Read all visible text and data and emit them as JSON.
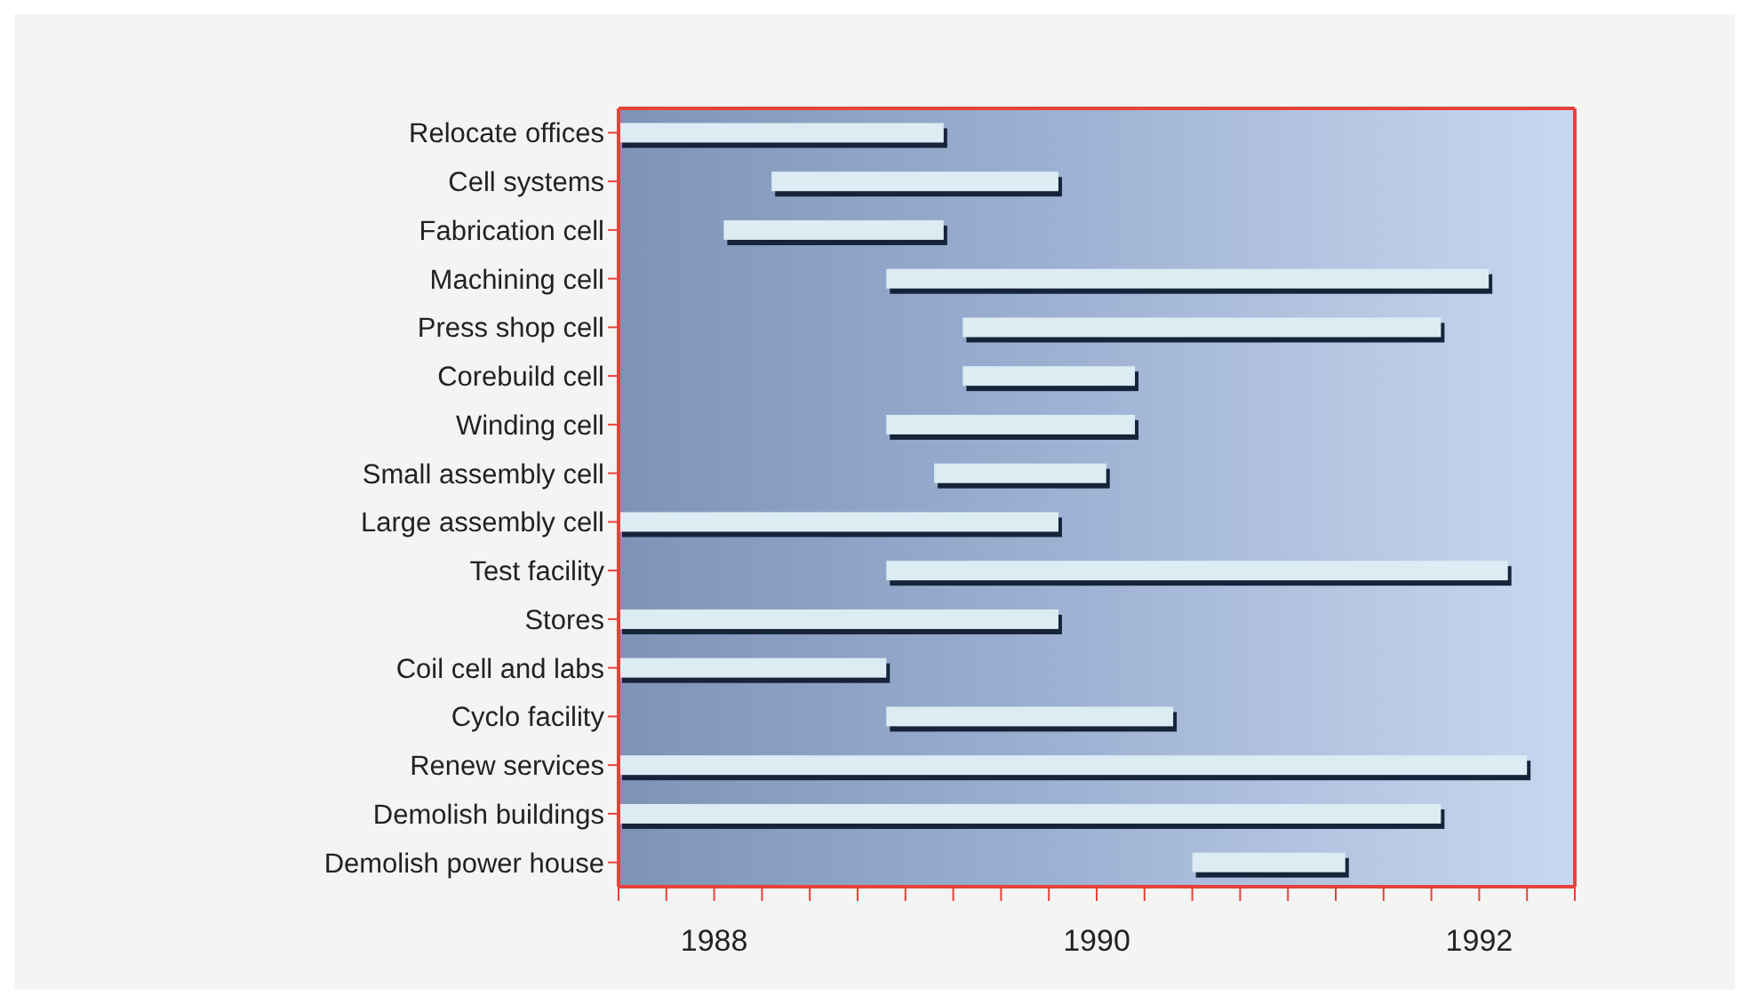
{
  "chart_data": {
    "type": "bar",
    "orientation": "horizontal",
    "categories": [
      "Relocate offices",
      "Cell systems",
      "Fabrication cell",
      "Machining cell",
      "Press shop cell",
      "Corebuild cell",
      "Winding cell",
      "Small assembly cell",
      "Large assembly cell",
      "Test facility",
      "Stores",
      "Coil cell and labs",
      "Cyclo facility",
      "Renew services",
      "Demolish buildings",
      "Demolish power house"
    ],
    "base": [
      1988.0,
      1988.8,
      1988.55,
      1989.4,
      1989.8,
      1989.8,
      1989.4,
      1989.65,
      1988.0,
      1989.4,
      1988.0,
      1988.0,
      1989.4,
      1988.0,
      1988.0,
      1991.0
    ],
    "values": [
      1.7,
      1.5,
      1.15,
      3.15,
      2.5,
      0.9,
      1.3,
      0.9,
      2.3,
      3.25,
      2.3,
      1.4,
      1.5,
      4.75,
      4.3,
      0.8
    ],
    "color": "#dbecf3",
    "xlim": [
      1988,
      1993
    ],
    "xticks": [
      {
        "value": 1988,
        "label": null
      },
      {
        "value": 1988.25,
        "label": null
      },
      {
        "value": 1988.5,
        "label": "1988"
      },
      {
        "value": 1988.75,
        "label": null
      },
      {
        "value": 1989,
        "label": null
      },
      {
        "value": 1989.25,
        "label": null
      },
      {
        "value": 1989.5,
        "label": null
      },
      {
        "value": 1989.75,
        "label": null
      },
      {
        "value": 1990,
        "label": null
      },
      {
        "value": 1990.25,
        "label": null
      },
      {
        "value": 1990.5,
        "label": "1990"
      },
      {
        "value": 1990.75,
        "label": null
      },
      {
        "value": 1991,
        "label": null
      },
      {
        "value": 1991.25,
        "label": null
      },
      {
        "value": 1991.5,
        "label": null
      },
      {
        "value": 1991.75,
        "label": null
      },
      {
        "value": 1992,
        "label": null
      },
      {
        "value": 1992.25,
        "label": null
      },
      {
        "value": 1992.5,
        "label": "1992"
      },
      {
        "value": 1992.75,
        "label": null
      },
      {
        "value": 1993,
        "label": null
      }
    ]
  }
}
